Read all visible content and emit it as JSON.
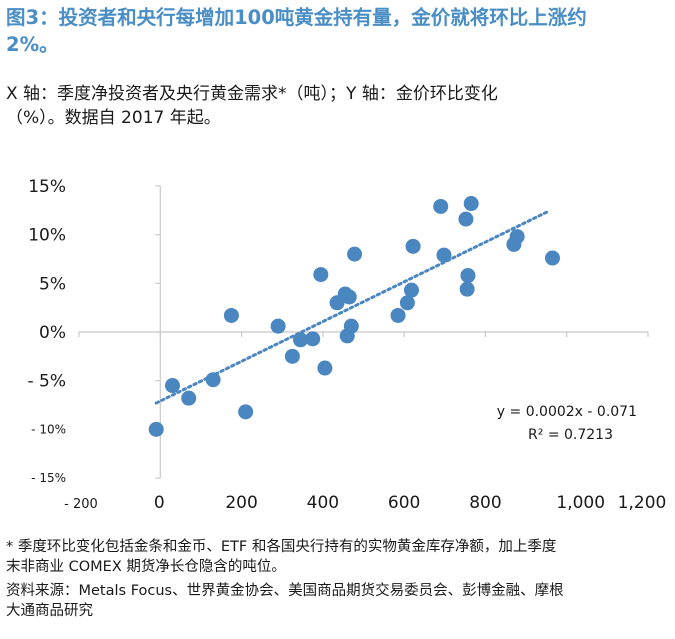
{
  "header": {
    "title_line1": "图3：投资者和央行每增加100吨黄金持有量，金价就将环比上涨约",
    "title_line2": "2%。",
    "subtitle_line1": "X 轴：季度净投资者及央行黄金需求*（吨）；Y 轴：金价环比变化",
    "subtitle_line2": "（%）。数据自 2017 年起。"
  },
  "footer": {
    "footnote_line1": "* 季度环比变化包括金条和金币、ETF 和各国央行持有的实物黄金库存净额，加上季度",
    "footnote_line2": "末非商业 COMEX 期货净长仓隐含的吨位。",
    "source_line1": "资料来源：Metals Focus、世界黄金协会、美国商品期货交易委员会、彭博金融、摩根",
    "source_line2": "大通商品研究"
  },
  "chart_data": {
    "type": "scatter",
    "title": "",
    "xlabel": "",
    "ylabel": "",
    "xlim": [
      -200,
      1200
    ],
    "ylim": [
      -15,
      15
    ],
    "x_ticks": [
      {
        "value": -200,
        "label": "- 200"
      },
      {
        "value": 0,
        "label": "0"
      },
      {
        "value": 200,
        "label": "200"
      },
      {
        "value": 400,
        "label": "400"
      },
      {
        "value": 600,
        "label": "600"
      },
      {
        "value": 800,
        "label": "800"
      },
      {
        "value": 1000,
        "label": "1,000"
      },
      {
        "value": 1200,
        "label": "1,200"
      }
    ],
    "y_ticks": [
      {
        "value": 15,
        "label": "15%"
      },
      {
        "value": 10,
        "label": "10%"
      },
      {
        "value": 5,
        "label": "5%"
      },
      {
        "value": 0,
        "label": "0%"
      },
      {
        "value": -5,
        "label": "- 5%"
      },
      {
        "value": -10,
        "label": "- 10%"
      },
      {
        "value": -15,
        "label": "- 15%"
      }
    ],
    "grid": false,
    "marker_color": "#4a86c0",
    "trendline_color": "#4a86c0",
    "points": [
      {
        "x": -10,
        "y": -10.0
      },
      {
        "x": 30,
        "y": -5.5
      },
      {
        "x": 70,
        "y": -6.8
      },
      {
        "x": 130,
        "y": -4.9
      },
      {
        "x": 175,
        "y": 1.7
      },
      {
        "x": 210,
        "y": -8.2
      },
      {
        "x": 290,
        "y": 0.6
      },
      {
        "x": 325,
        "y": -2.5
      },
      {
        "x": 345,
        "y": -0.8
      },
      {
        "x": 375,
        "y": -0.7
      },
      {
        "x": 395,
        "y": 5.9
      },
      {
        "x": 405,
        "y": -3.7
      },
      {
        "x": 435,
        "y": 3.0
      },
      {
        "x": 455,
        "y": 3.9
      },
      {
        "x": 460,
        "y": -0.4
      },
      {
        "x": 465,
        "y": 3.6
      },
      {
        "x": 470,
        "y": 0.6
      },
      {
        "x": 478,
        "y": 8.0
      },
      {
        "x": 585,
        "y": 1.7
      },
      {
        "x": 608,
        "y": 3.0
      },
      {
        "x": 618,
        "y": 4.3
      },
      {
        "x": 622,
        "y": 8.8
      },
      {
        "x": 690,
        "y": 12.9
      },
      {
        "x": 698,
        "y": 7.9
      },
      {
        "x": 752,
        "y": 11.6
      },
      {
        "x": 755,
        "y": 4.4
      },
      {
        "x": 757,
        "y": 5.8
      },
      {
        "x": 765,
        "y": 13.2
      },
      {
        "x": 870,
        "y": 9.0
      },
      {
        "x": 878,
        "y": 9.8
      },
      {
        "x": 965,
        "y": 7.6
      }
    ],
    "trendline": {
      "x_start": -10,
      "y_start": -7.3,
      "x_end": 955,
      "y_end": 12.4,
      "equation": "y = 0.0002x - 0.071",
      "r2_label": "R² = 0.7213"
    }
  }
}
